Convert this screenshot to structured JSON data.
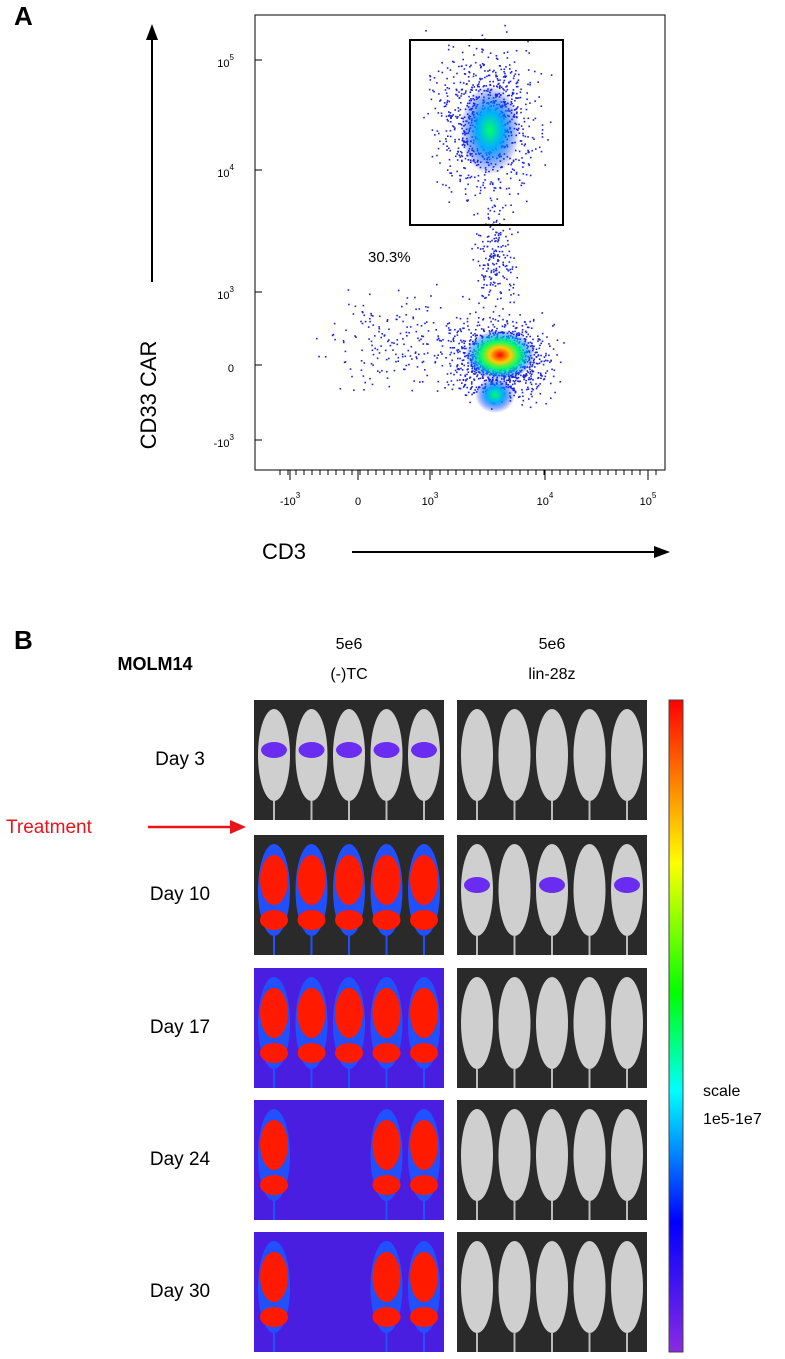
{
  "panel_a": {
    "label": "A",
    "y_label": "CD33 CAR",
    "x_label": "CD3",
    "gate_percent": "30.3%",
    "yticks": [
      {
        "base": "10",
        "exp": "5"
      },
      {
        "base": "10",
        "exp": "4"
      },
      {
        "base": "10",
        "exp": "3"
      },
      {
        "base": "0"
      },
      {
        "base": "-10",
        "exp": "3"
      }
    ],
    "xticks": [
      {
        "base": "-10",
        "exp": "3"
      },
      {
        "base": "0"
      },
      {
        "base": "10",
        "exp": "3"
      },
      {
        "base": "10",
        "exp": "4"
      },
      {
        "base": "10",
        "exp": "5"
      }
    ]
  },
  "panel_b": {
    "label": "B",
    "cell_line": "MOLM14",
    "treatment": "Treatment",
    "groups": [
      {
        "dose": "5e6",
        "name": "(-)TC"
      },
      {
        "dose": "5e6",
        "name": "lin-28z"
      }
    ],
    "days": [
      "Day 3",
      "Day 10",
      "Day 17",
      "Day 24",
      "Day 30"
    ],
    "scale_label": [
      "scale",
      "1e5-1e7"
    ]
  }
}
